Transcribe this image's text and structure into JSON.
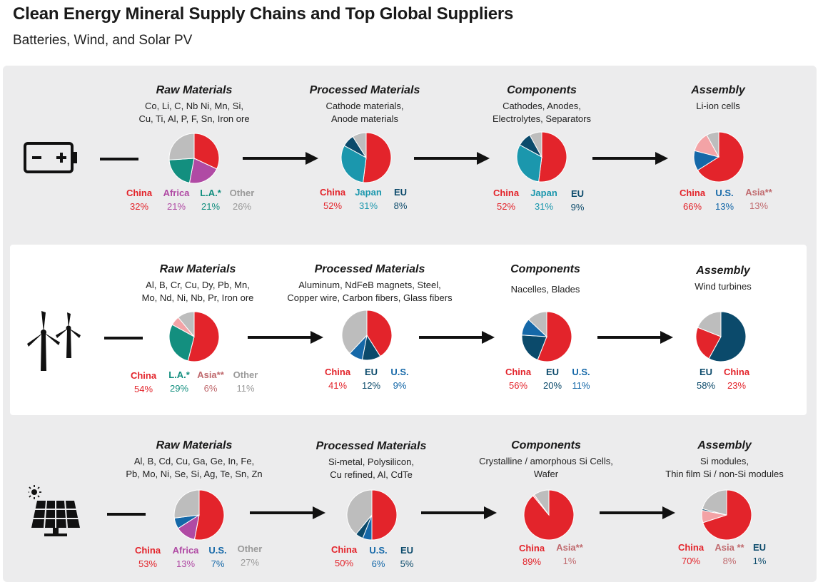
{
  "header": {
    "title": "Clean Energy Mineral Supply Chains and Top Global Suppliers",
    "subtitle": "Batteries, Wind, and Solar PV"
  },
  "colors": {
    "China": "#e3242b",
    "Africa": "#b04aa4",
    "LA": "#138f7f",
    "Other": "#bdbdbd",
    "Japan": "#1b97ad",
    "EU": "#0b4a6b",
    "US": "#1568a8",
    "Asia": "#f3a3a6"
  },
  "chart_data": [
    {
      "type": "pie",
      "title": "Raw Materials",
      "row": "Batteries",
      "desc": [
        "Co, Li, C, Nb Ni, Mn, Si,",
        "Cu, Ti, Al, P, F, Sn, Iron ore"
      ],
      "series": [
        {
          "name": "China",
          "value": 32,
          "label": "China",
          "pct": "32%",
          "color": "#e3242b",
          "text_color": "#e3242b"
        },
        {
          "name": "Africa",
          "value": 21,
          "label": "Africa",
          "pct": "21%",
          "color": "#b04aa4",
          "text_color": "#b04aa4"
        },
        {
          "name": "L.A.",
          "value": 21,
          "label": "L.A.*",
          "pct": "21%",
          "color": "#138f7f",
          "text_color": "#138f7f"
        },
        {
          "name": "Other",
          "value": 26,
          "label": "Other",
          "pct": "26%",
          "color": "#bdbdbd",
          "text_color": "#9a9a9a"
        }
      ]
    },
    {
      "type": "pie",
      "title": "Processed Materials",
      "row": "Batteries",
      "desc": [
        "Cathode materials,",
        "Anode materials"
      ],
      "series": [
        {
          "name": "China",
          "value": 52,
          "label": "China",
          "pct": "52%",
          "color": "#e3242b",
          "text_color": "#e3242b"
        },
        {
          "name": "Japan",
          "value": 31,
          "label": "Japan",
          "pct": "31%",
          "color": "#1b97ad",
          "text_color": "#1b97ad"
        },
        {
          "name": "EU",
          "value": 8,
          "label": "EU",
          "pct": "8%",
          "color": "#0b4a6b",
          "text_color": "#0b4a6b"
        },
        {
          "name": "Rest",
          "value": 9,
          "color": "#bdbdbd"
        }
      ]
    },
    {
      "type": "pie",
      "title": "Components",
      "row": "Batteries",
      "desc": [
        "Cathodes, Anodes,",
        "Electrolytes, Separators"
      ],
      "series": [
        {
          "name": "China",
          "value": 52,
          "label": "China",
          "pct": "52%",
          "color": "#e3242b",
          "text_color": "#e3242b"
        },
        {
          "name": "Japan",
          "value": 31,
          "label": "Japan",
          "pct": "31%",
          "color": "#1b97ad",
          "text_color": "#1b97ad"
        },
        {
          "name": "EU",
          "value": 9,
          "label": "EU",
          "pct": "9%",
          "color": "#0b4a6b",
          "text_color": "#0b4a6b"
        },
        {
          "name": "Rest",
          "value": 8,
          "color": "#bdbdbd"
        }
      ]
    },
    {
      "type": "pie",
      "title": "Assembly",
      "row": "Batteries",
      "desc": [
        "Li-ion cells"
      ],
      "series": [
        {
          "name": "China",
          "value": 66,
          "label": "China",
          "pct": "66%",
          "color": "#e3242b",
          "text_color": "#e3242b"
        },
        {
          "name": "U.S.",
          "value": 13,
          "label": "U.S.",
          "pct": "13%",
          "color": "#1568a8",
          "text_color": "#1568a8"
        },
        {
          "name": "Asia",
          "value": 13,
          "label": "Asia**",
          "pct": "13%",
          "color": "#f3a3a6",
          "text_color": "#c06a6e"
        },
        {
          "name": "Rest",
          "value": 8,
          "color": "#bdbdbd"
        }
      ]
    },
    {
      "type": "pie",
      "title": "Raw Materials",
      "row": "Wind",
      "desc": [
        "Al, B, Cr, Cu, Dy, Pb, Mn,",
        "Mo, Nd, Ni, Nb, Pr, Iron ore"
      ],
      "series": [
        {
          "name": "China",
          "value": 54,
          "label": "China",
          "pct": "54%",
          "color": "#e3242b",
          "text_color": "#e3242b"
        },
        {
          "name": "L.A.",
          "value": 29,
          "label": "L.A.*",
          "pct": "29%",
          "color": "#138f7f",
          "text_color": "#138f7f"
        },
        {
          "name": "Asia",
          "value": 6,
          "label": "Asia**",
          "pct": "6%",
          "color": "#f3a3a6",
          "text_color": "#c06a6e"
        },
        {
          "name": "Other",
          "value": 11,
          "label": "Other",
          "pct": "11%",
          "color": "#bdbdbd",
          "text_color": "#9a9a9a"
        }
      ]
    },
    {
      "type": "pie",
      "title": "Processed Materials",
      "row": "Wind",
      "desc": [
        "Aluminum, NdFeB magnets, Steel,",
        "Copper wire, Carbon fibers, Glass fibers"
      ],
      "series": [
        {
          "name": "China",
          "value": 41,
          "label": "China",
          "pct": "41%",
          "color": "#e3242b",
          "text_color": "#e3242b"
        },
        {
          "name": "EU",
          "value": 12,
          "label": "EU",
          "pct": "12%",
          "color": "#0b4a6b",
          "text_color": "#0b4a6b"
        },
        {
          "name": "U.S.",
          "value": 9,
          "label": "U.S.",
          "pct": "9%",
          "color": "#1568a8",
          "text_color": "#1568a8"
        },
        {
          "name": "Rest",
          "value": 38,
          "color": "#bdbdbd"
        }
      ]
    },
    {
      "type": "pie",
      "title": "Components",
      "row": "Wind",
      "desc": [
        "Nacelles, Blades"
      ],
      "series": [
        {
          "name": "China",
          "value": 56,
          "label": "China",
          "pct": "56%",
          "color": "#e3242b",
          "text_color": "#e3242b"
        },
        {
          "name": "EU",
          "value": 20,
          "label": "EU",
          "pct": "20%",
          "color": "#0b4a6b",
          "text_color": "#0b4a6b"
        },
        {
          "name": "U.S.",
          "value": 11,
          "label": "U.S.",
          "pct": "11%",
          "color": "#1568a8",
          "text_color": "#1568a8"
        },
        {
          "name": "Rest",
          "value": 13,
          "color": "#bdbdbd"
        }
      ]
    },
    {
      "type": "pie",
      "title": "Assembly",
      "row": "Wind",
      "desc": [
        "Wind turbines"
      ],
      "series": [
        {
          "name": "EU",
          "value": 58,
          "label": "EU",
          "pct": "58%",
          "color": "#0b4a6b",
          "text_color": "#0b4a6b"
        },
        {
          "name": "China",
          "value": 23,
          "label": "China",
          "pct": "23%",
          "color": "#e3242b",
          "text_color": "#e3242b"
        },
        {
          "name": "Rest",
          "value": 19,
          "color": "#bdbdbd"
        }
      ]
    },
    {
      "type": "pie",
      "title": "Raw Materials",
      "row": "Solar PV",
      "desc": [
        "Al, B, Cd, Cu, Ga, Ge, In, Fe,",
        "Pb, Mo, Ni, Se, Si, Ag, Te, Sn, Zn"
      ],
      "series": [
        {
          "name": "China",
          "value": 53,
          "label": "China",
          "pct": "53%",
          "color": "#e3242b",
          "text_color": "#e3242b"
        },
        {
          "name": "Africa",
          "value": 13,
          "label": "Africa",
          "pct": "13%",
          "color": "#b04aa4",
          "text_color": "#b04aa4"
        },
        {
          "name": "U.S.",
          "value": 7,
          "label": "U.S.",
          "pct": "7%",
          "color": "#1568a8",
          "text_color": "#1568a8"
        },
        {
          "name": "Other",
          "value": 27,
          "label": "Other",
          "pct": "27%",
          "color": "#bdbdbd",
          "text_color": "#9a9a9a"
        }
      ]
    },
    {
      "type": "pie",
      "title": "Processed Materials",
      "row": "Solar PV",
      "desc": [
        "Si-metal, Polysilicon,",
        "Cu refined, Al, CdTe"
      ],
      "series": [
        {
          "name": "China",
          "value": 50,
          "label": "China",
          "pct": "50%",
          "color": "#e3242b",
          "text_color": "#e3242b"
        },
        {
          "name": "U.S.",
          "value": 6,
          "label": "U.S.",
          "pct": "6%",
          "color": "#1568a8",
          "text_color": "#1568a8"
        },
        {
          "name": "EU",
          "value": 5,
          "label": "EU",
          "pct": "5%",
          "color": "#0b4a6b",
          "text_color": "#0b4a6b"
        },
        {
          "name": "Rest",
          "value": 39,
          "color": "#bdbdbd"
        }
      ]
    },
    {
      "type": "pie",
      "title": "Components",
      "row": "Solar PV",
      "desc": [
        "Crystalline / amorphous Si Cells,",
        "Wafer"
      ],
      "series": [
        {
          "name": "China",
          "value": 89,
          "label": "China",
          "pct": "89%",
          "color": "#e3242b",
          "text_color": "#e3242b"
        },
        {
          "name": "Asia",
          "value": 1,
          "label": "Asia**",
          "pct": "1%",
          "color": "#f3a3a6",
          "text_color": "#c06a6e"
        },
        {
          "name": "Rest",
          "value": 10,
          "color": "#bdbdbd"
        }
      ]
    },
    {
      "type": "pie",
      "title": "Assembly",
      "row": "Solar PV",
      "desc": [
        "Si modules,",
        "Thin film Si / non-Si modules"
      ],
      "series": [
        {
          "name": "China",
          "value": 70,
          "label": "China",
          "pct": "70%",
          "color": "#e3242b",
          "text_color": "#e3242b"
        },
        {
          "name": "Asia",
          "value": 8,
          "label": "Asia **",
          "pct": "8%",
          "color": "#f3a3a6",
          "text_color": "#c06a6e"
        },
        {
          "name": "EU",
          "value": 1,
          "label": "EU",
          "pct": "1%",
          "color": "#0b4a6b",
          "text_color": "#0b4a6b"
        },
        {
          "name": "Rest",
          "value": 21,
          "color": "#bdbdbd"
        }
      ]
    }
  ]
}
